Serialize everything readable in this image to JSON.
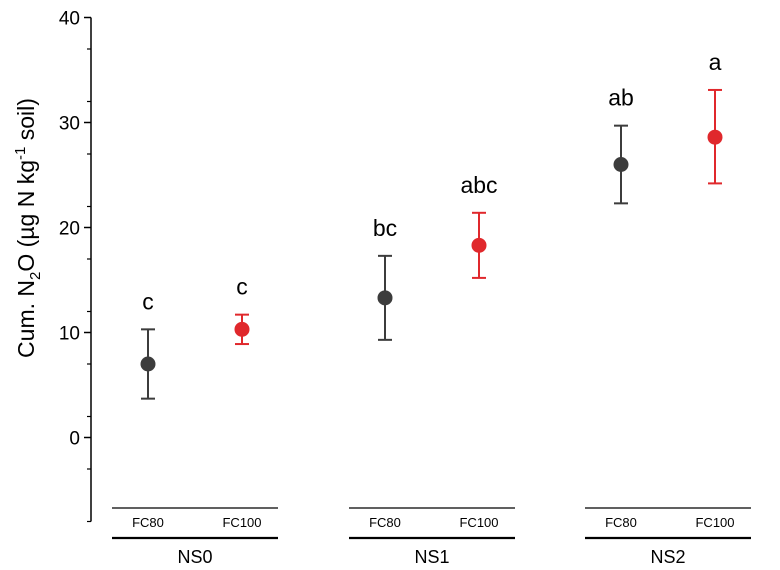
{
  "chart_data": {
    "type": "scatter",
    "ylabel": {
      "pre": "Cum. N",
      "sub": "2",
      "mid": "O (µg N kg",
      "sup": "-1",
      "post": " soil)"
    },
    "ylim": [
      -8,
      40
    ],
    "yticks": [
      0,
      10,
      20,
      30,
      40
    ],
    "grid": false,
    "colors": {
      "FC80": "#3c3c3c",
      "FC100": "#e0282c"
    },
    "groups": [
      {
        "label": "NS0",
        "points": [
          {
            "sublabel": "FC80",
            "value": 7.0,
            "low": 3.7,
            "high": 10.3,
            "letter": "c"
          },
          {
            "sublabel": "FC100",
            "value": 10.3,
            "low": 8.9,
            "high": 11.7,
            "letter": "c"
          }
        ]
      },
      {
        "label": "NS1",
        "points": [
          {
            "sublabel": "FC80",
            "value": 13.3,
            "low": 9.3,
            "high": 17.3,
            "letter": "bc"
          },
          {
            "sublabel": "FC100",
            "value": 18.3,
            "low": 15.2,
            "high": 21.4,
            "letter": "abc"
          }
        ]
      },
      {
        "label": "NS2",
        "points": [
          {
            "sublabel": "FC80",
            "value": 26.0,
            "low": 22.3,
            "high": 29.7,
            "letter": "ab"
          },
          {
            "sublabel": "FC100",
            "value": 28.6,
            "low": 24.2,
            "high": 33.1,
            "letter": "a"
          }
        ]
      }
    ]
  }
}
